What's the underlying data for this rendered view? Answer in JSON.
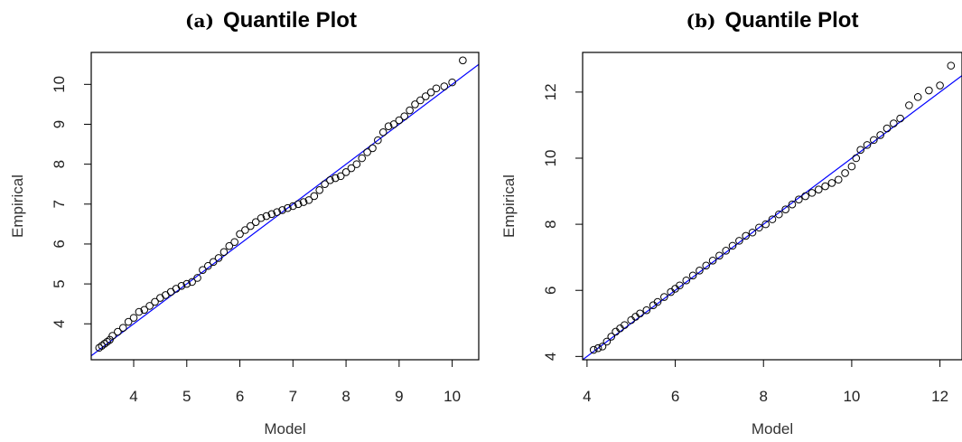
{
  "chart_data": [
    {
      "type": "scatter",
      "panel_label": "(a)",
      "title": "Quantile Plot",
      "xlabel": "Model",
      "ylabel": "Empirical",
      "xlim": [
        3.2,
        10.5
      ],
      "ylim": [
        3.1,
        10.8
      ],
      "xticks": [
        "4",
        "5",
        "6",
        "7",
        "8",
        "9",
        "10"
      ],
      "yticks": [
        "4",
        "5",
        "6",
        "7",
        "8",
        "9",
        "10"
      ],
      "reference_line": {
        "slope": 1,
        "intercept": 0,
        "color": "#0000ff"
      },
      "point_color": "#000000",
      "series": [
        {
          "x": [
            3.35,
            3.4,
            3.45,
            3.5,
            3.55,
            3.6,
            3.7,
            3.8,
            3.9,
            4.0,
            4.1,
            4.2,
            4.3,
            4.4,
            4.5,
            4.6,
            4.7,
            4.8,
            4.9,
            5.0,
            5.1,
            5.2,
            5.3,
            5.4,
            5.5,
            5.6,
            5.7,
            5.8,
            5.9,
            6.0,
            6.1,
            6.2,
            6.3,
            6.4,
            6.5,
            6.6,
            6.7,
            6.8,
            6.9,
            7.0,
            7.1,
            7.2,
            7.3,
            7.4,
            7.5,
            7.6,
            7.7,
            7.8,
            7.9,
            8.0,
            8.1,
            8.2,
            8.3,
            8.4,
            8.5,
            8.6,
            8.7,
            8.8,
            8.9,
            9.0,
            9.1,
            9.2,
            9.3,
            9.4,
            9.5,
            9.6,
            9.7,
            9.85,
            10.0,
            10.2
          ],
          "y": [
            3.4,
            3.45,
            3.5,
            3.55,
            3.6,
            3.7,
            3.8,
            3.9,
            4.05,
            4.15,
            4.3,
            4.35,
            4.45,
            4.55,
            4.65,
            4.72,
            4.8,
            4.88,
            4.95,
            5.0,
            5.05,
            5.15,
            5.35,
            5.45,
            5.55,
            5.65,
            5.8,
            5.95,
            6.05,
            6.25,
            6.35,
            6.45,
            6.55,
            6.65,
            6.7,
            6.75,
            6.8,
            6.85,
            6.9,
            6.95,
            7.0,
            7.05,
            7.1,
            7.2,
            7.35,
            7.5,
            7.6,
            7.65,
            7.7,
            7.8,
            7.9,
            8.0,
            8.15,
            8.3,
            8.4,
            8.6,
            8.8,
            8.95,
            9.0,
            9.1,
            9.2,
            9.35,
            9.5,
            9.6,
            9.7,
            9.8,
            9.9,
            9.95,
            10.05,
            10.6
          ]
        }
      ]
    },
    {
      "type": "scatter",
      "panel_label": "(b)",
      "title": "Quantile Plot",
      "xlabel": "Model",
      "ylabel": "Empirical",
      "xlim": [
        3.9,
        12.5
      ],
      "ylim": [
        3.9,
        13.2
      ],
      "xticks": [
        "4",
        "6",
        "8",
        "10",
        "12"
      ],
      "yticks": [
        "4",
        "6",
        "8",
        "10",
        "12"
      ],
      "reference_line": {
        "slope": 1,
        "intercept": 0,
        "color": "#0000ff"
      },
      "point_color": "#000000",
      "series": [
        {
          "x": [
            4.15,
            4.25,
            4.35,
            4.45,
            4.55,
            4.65,
            4.75,
            4.85,
            5.0,
            5.1,
            5.2,
            5.35,
            5.5,
            5.6,
            5.75,
            5.9,
            6.0,
            6.1,
            6.25,
            6.4,
            6.55,
            6.7,
            6.85,
            7.0,
            7.15,
            7.3,
            7.45,
            7.6,
            7.75,
            7.9,
            8.05,
            8.2,
            8.35,
            8.5,
            8.65,
            8.8,
            8.95,
            9.1,
            9.25,
            9.4,
            9.55,
            9.7,
            9.85,
            10.0,
            10.1,
            10.2,
            10.35,
            10.5,
            10.65,
            10.8,
            10.95,
            11.1,
            11.3,
            11.5,
            11.75,
            12.0,
            12.25
          ],
          "y": [
            4.2,
            4.25,
            4.3,
            4.45,
            4.6,
            4.75,
            4.85,
            4.95,
            5.1,
            5.2,
            5.3,
            5.4,
            5.55,
            5.65,
            5.8,
            5.95,
            6.05,
            6.15,
            6.3,
            6.45,
            6.6,
            6.75,
            6.9,
            7.05,
            7.2,
            7.35,
            7.5,
            7.65,
            7.75,
            7.9,
            8.0,
            8.15,
            8.3,
            8.45,
            8.6,
            8.75,
            8.85,
            8.95,
            9.05,
            9.15,
            9.25,
            9.35,
            9.55,
            9.75,
            10.0,
            10.25,
            10.4,
            10.55,
            10.7,
            10.9,
            11.05,
            11.2,
            11.6,
            11.85,
            12.05,
            12.2,
            12.8
          ]
        }
      ]
    }
  ]
}
